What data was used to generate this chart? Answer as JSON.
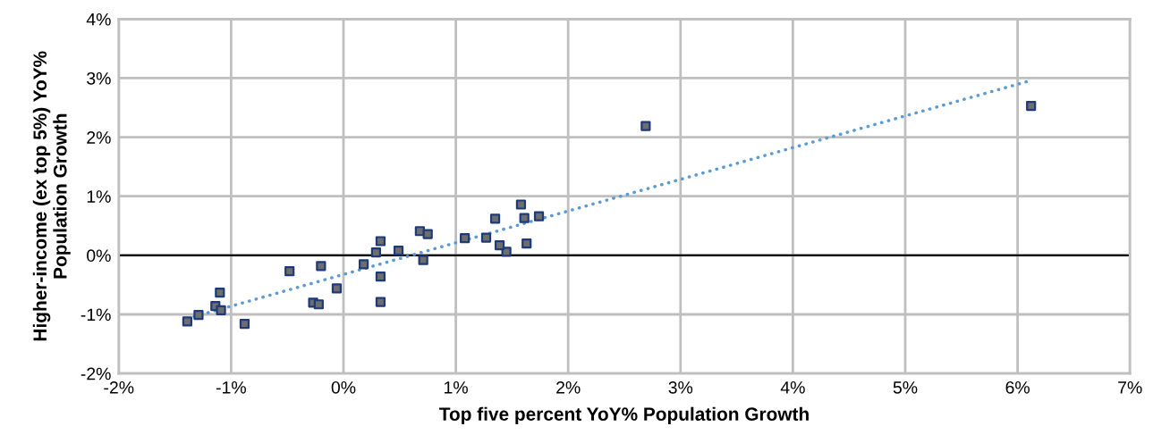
{
  "chart_data": {
    "type": "scatter",
    "xlabel": "Top five percent YoY% Population Growth",
    "ylabel": "Higher-income (ex top 5%) YoY%\nPopulation Growth",
    "series": [
      {
        "color": "#6e6e6e",
        "marker": "square",
        "x": [
          -1.39,
          -1.29,
          -1.1,
          -1.14,
          -1.09,
          -0.88,
          -0.48,
          -0.2,
          -0.27,
          -0.22,
          -0.06,
          0.33,
          0.33,
          0.18,
          0.29,
          0.49,
          0.71,
          1.45,
          0.33,
          0.68,
          0.75,
          1.08,
          1.27,
          1.35,
          1.58,
          1.61,
          1.74,
          1.39,
          1.63,
          2.69,
          6.12
        ],
        "values": [
          -1.12,
          -1.01,
          -0.63,
          -0.86,
          -0.93,
          -1.16,
          -0.27,
          -0.18,
          -0.8,
          -0.83,
          -0.56,
          -0.36,
          -0.79,
          -0.15,
          0.05,
          0.08,
          -0.08,
          0.06,
          0.24,
          0.41,
          0.36,
          0.29,
          0.3,
          0.62,
          0.86,
          0.63,
          0.66,
          0.17,
          0.2,
          2.19,
          2.53
        ]
      },
      {
        "type": "line",
        "color": "#5b9bd5",
        "line_style": "dotted",
        "x": [
          -1.39,
          6.1
        ],
        "values": [
          -1.07,
          2.95
        ]
      }
    ],
    "xlim": [
      -2,
      7
    ],
    "ylim": [
      -2,
      4
    ],
    "xticks": [
      {
        "value": -2,
        "label": "-2%"
      },
      {
        "value": -1,
        "label": "-1%"
      },
      {
        "value": 0,
        "label": "0%"
      },
      {
        "value": 1,
        "label": "1%"
      },
      {
        "value": 2,
        "label": "2%"
      },
      {
        "value": 3,
        "label": "3%"
      },
      {
        "value": 4,
        "label": "4%"
      },
      {
        "value": 5,
        "label": "5%"
      },
      {
        "value": 6,
        "label": "6%"
      },
      {
        "value": 7,
        "label": "7%"
      }
    ],
    "yticks": [
      {
        "value": -2,
        "label": "-2%"
      },
      {
        "value": -1,
        "label": "-1%"
      },
      {
        "value": 0,
        "label": "0%"
      },
      {
        "value": 1,
        "label": "1%"
      },
      {
        "value": 2,
        "label": "2%"
      },
      {
        "value": 3,
        "label": "3%"
      },
      {
        "value": 4,
        "label": "4%"
      }
    ],
    "ref_lines": [
      {
        "axis": "y",
        "value": 0,
        "color": "#000000"
      }
    ],
    "grid": true,
    "legend": false
  }
}
